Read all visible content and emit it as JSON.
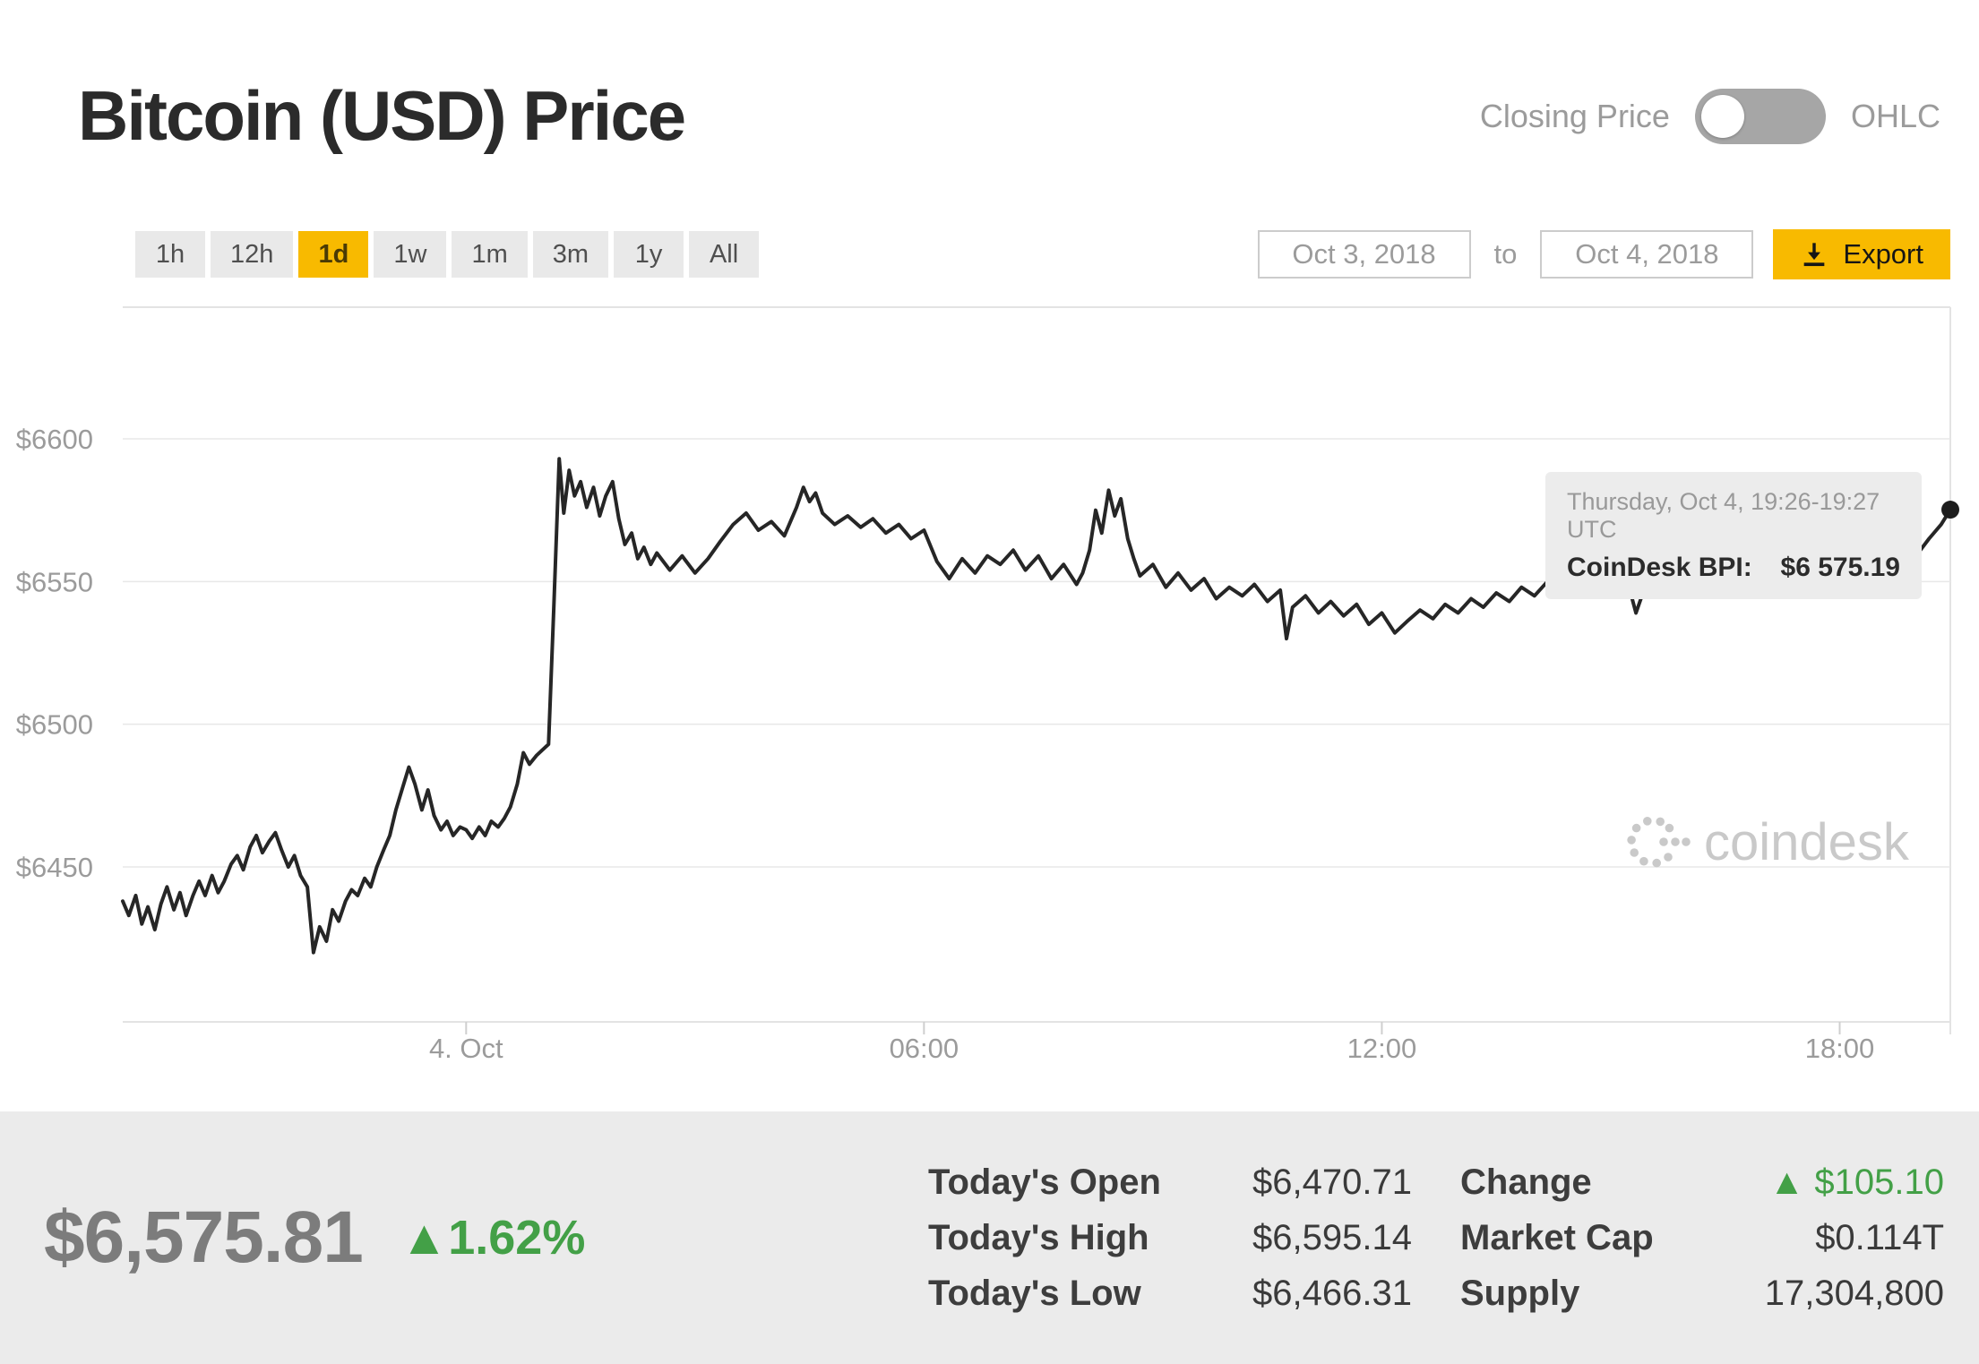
{
  "header": {
    "title": "Bitcoin (USD) Price",
    "toggle": {
      "left_label": "Closing Price",
      "right_label": "OHLC",
      "state": "closing_price"
    }
  },
  "controls": {
    "ranges": [
      {
        "label": "1h"
      },
      {
        "label": "12h"
      },
      {
        "label": "1d"
      },
      {
        "label": "1w"
      },
      {
        "label": "1m"
      },
      {
        "label": "3m"
      },
      {
        "label": "1y"
      },
      {
        "label": "All"
      }
    ],
    "active_range": "1d",
    "date_from": "Oct 3, 2018",
    "to_label": "to",
    "date_to": "Oct 4, 2018",
    "export_label": "Export"
  },
  "tooltip": {
    "time": "Thursday, Oct 4, 19:26-19:27 UTC",
    "source_label": "CoinDesk BPI:",
    "value": "$6 575.19"
  },
  "watermark": {
    "text": "coindesk"
  },
  "footer": {
    "price": "$6,575.81",
    "change_percent": "▲1.62%",
    "stats": [
      {
        "label": "Today's Open",
        "value": "$6,470.71"
      },
      {
        "label": "Today's High",
        "value": "$6,595.14"
      },
      {
        "label": "Today's Low",
        "value": "$6,466.31"
      },
      {
        "label": "Change",
        "value": "▲ $105.10"
      },
      {
        "label": "Market Cap",
        "value": "$0.114T"
      },
      {
        "label": "Supply",
        "value": "17,304,800"
      }
    ]
  },
  "colors": {
    "accent_yellow": "#f8ba00",
    "positive_green": "#43a047",
    "line": "#262626",
    "grid": "#e8e8e8",
    "axis_text": "#9b9b9b"
  },
  "chart_data": {
    "type": "line",
    "title": "Bitcoin (USD) Price",
    "series_name": "CoinDesk BPI closing price (USD)",
    "legend": "none",
    "grid": true,
    "x_axis": {
      "unit": "hours since 2018-10-03 19:30 UTC",
      "range": [
        0,
        23.95
      ],
      "ticks": [
        {
          "t": 4.5,
          "label": "4. Oct"
        },
        {
          "t": 10.5,
          "label": "06:00"
        },
        {
          "t": 16.5,
          "label": "12:00"
        },
        {
          "t": 22.5,
          "label": "18:00"
        }
      ]
    },
    "y_axis": {
      "ticks": [
        6450,
        6500,
        6550,
        6600
      ],
      "tick_labels": [
        "$6450",
        "$6500",
        "$6550",
        "$6600"
      ],
      "ylim": [
        6410,
        6625
      ]
    },
    "end_point": {
      "t": 23.95,
      "price": 6575.19,
      "label": "$6 575.19"
    },
    "points": [
      [
        0,
        6438
      ],
      [
        0.08,
        6433
      ],
      [
        0.17,
        6440
      ],
      [
        0.25,
        6430
      ],
      [
        0.33,
        6436
      ],
      [
        0.42,
        6428
      ],
      [
        0.5,
        6437
      ],
      [
        0.58,
        6443
      ],
      [
        0.67,
        6435
      ],
      [
        0.75,
        6441
      ],
      [
        0.83,
        6433
      ],
      [
        0.92,
        6440
      ],
      [
        1,
        6445
      ],
      [
        1.08,
        6440
      ],
      [
        1.17,
        6447
      ],
      [
        1.25,
        6441
      ],
      [
        1.33,
        6445
      ],
      [
        1.42,
        6451
      ],
      [
        1.5,
        6454
      ],
      [
        1.58,
        6449
      ],
      [
        1.67,
        6457
      ],
      [
        1.75,
        6461
      ],
      [
        1.83,
        6455
      ],
      [
        1.92,
        6459
      ],
      [
        2,
        6462
      ],
      [
        2.08,
        6456
      ],
      [
        2.17,
        6450
      ],
      [
        2.25,
        6454
      ],
      [
        2.33,
        6447
      ],
      [
        2.42,
        6443
      ],
      [
        2.5,
        6420
      ],
      [
        2.58,
        6429
      ],
      [
        2.67,
        6424
      ],
      [
        2.75,
        6435
      ],
      [
        2.83,
        6431
      ],
      [
        2.92,
        6438
      ],
      [
        3,
        6442
      ],
      [
        3.08,
        6440
      ],
      [
        3.17,
        6446
      ],
      [
        3.25,
        6443
      ],
      [
        3.33,
        6450
      ],
      [
        3.42,
        6456
      ],
      [
        3.5,
        6461
      ],
      [
        3.58,
        6470
      ],
      [
        3.67,
        6478
      ],
      [
        3.75,
        6485
      ],
      [
        3.83,
        6479
      ],
      [
        3.92,
        6470
      ],
      [
        4,
        6477
      ],
      [
        4.08,
        6468
      ],
      [
        4.17,
        6463
      ],
      [
        4.25,
        6466
      ],
      [
        4.33,
        6461
      ],
      [
        4.42,
        6464
      ],
      [
        4.5,
        6463
      ],
      [
        4.58,
        6460
      ],
      [
        4.67,
        6464
      ],
      [
        4.75,
        6461
      ],
      [
        4.83,
        6466
      ],
      [
        4.92,
        6464
      ],
      [
        5,
        6467
      ],
      [
        5.08,
        6471
      ],
      [
        5.17,
        6479
      ],
      [
        5.25,
        6490
      ],
      [
        5.33,
        6486
      ],
      [
        5.42,
        6489
      ],
      [
        5.5,
        6491
      ],
      [
        5.58,
        6493
      ],
      [
        5.65,
        6542
      ],
      [
        5.72,
        6593
      ],
      [
        5.78,
        6574
      ],
      [
        5.85,
        6589
      ],
      [
        5.92,
        6580
      ],
      [
        6,
        6585
      ],
      [
        6.08,
        6576
      ],
      [
        6.17,
        6583
      ],
      [
        6.25,
        6573
      ],
      [
        6.33,
        6580
      ],
      [
        6.42,
        6585
      ],
      [
        6.5,
        6572
      ],
      [
        6.58,
        6563
      ],
      [
        6.67,
        6567
      ],
      [
        6.75,
        6558
      ],
      [
        6.83,
        6562
      ],
      [
        6.92,
        6556
      ],
      [
        7,
        6560
      ],
      [
        7.17,
        6554
      ],
      [
        7.33,
        6559
      ],
      [
        7.5,
        6553
      ],
      [
        7.67,
        6558
      ],
      [
        7.83,
        6564
      ],
      [
        8,
        6570
      ],
      [
        8.17,
        6574
      ],
      [
        8.33,
        6568
      ],
      [
        8.5,
        6571
      ],
      [
        8.67,
        6566
      ],
      [
        8.83,
        6576
      ],
      [
        8.92,
        6583
      ],
      [
        9,
        6578
      ],
      [
        9.08,
        6581
      ],
      [
        9.17,
        6574
      ],
      [
        9.33,
        6570
      ],
      [
        9.5,
        6573
      ],
      [
        9.67,
        6569
      ],
      [
        9.83,
        6572
      ],
      [
        10,
        6567
      ],
      [
        10.17,
        6570
      ],
      [
        10.33,
        6565
      ],
      [
        10.5,
        6568
      ],
      [
        10.67,
        6557
      ],
      [
        10.83,
        6551
      ],
      [
        11,
        6558
      ],
      [
        11.17,
        6553
      ],
      [
        11.33,
        6559
      ],
      [
        11.5,
        6556
      ],
      [
        11.67,
        6561
      ],
      [
        11.83,
        6554
      ],
      [
        12,
        6559
      ],
      [
        12.17,
        6551
      ],
      [
        12.33,
        6556
      ],
      [
        12.5,
        6549
      ],
      [
        12.58,
        6553
      ],
      [
        12.67,
        6561
      ],
      [
        12.75,
        6575
      ],
      [
        12.83,
        6567
      ],
      [
        12.92,
        6582
      ],
      [
        13,
        6573
      ],
      [
        13.08,
        6579
      ],
      [
        13.17,
        6565
      ],
      [
        13.25,
        6558
      ],
      [
        13.33,
        6552
      ],
      [
        13.5,
        6556
      ],
      [
        13.67,
        6548
      ],
      [
        13.83,
        6553
      ],
      [
        14,
        6547
      ],
      [
        14.17,
        6551
      ],
      [
        14.33,
        6544
      ],
      [
        14.5,
        6548
      ],
      [
        14.67,
        6545
      ],
      [
        14.83,
        6549
      ],
      [
        15,
        6543
      ],
      [
        15.17,
        6547
      ],
      [
        15.25,
        6530
      ],
      [
        15.33,
        6541
      ],
      [
        15.5,
        6545
      ],
      [
        15.67,
        6539
      ],
      [
        15.83,
        6543
      ],
      [
        16,
        6538
      ],
      [
        16.17,
        6542
      ],
      [
        16.33,
        6535
      ],
      [
        16.5,
        6539
      ],
      [
        16.67,
        6532
      ],
      [
        16.83,
        6536
      ],
      [
        17,
        6540
      ],
      [
        17.17,
        6537
      ],
      [
        17.33,
        6542
      ],
      [
        17.5,
        6539
      ],
      [
        17.67,
        6544
      ],
      [
        17.83,
        6541
      ],
      [
        18,
        6546
      ],
      [
        18.17,
        6543
      ],
      [
        18.33,
        6548
      ],
      [
        18.5,
        6545
      ],
      [
        18.67,
        6550
      ],
      [
        18.83,
        6547
      ],
      [
        19,
        6551
      ],
      [
        19.17,
        6548
      ],
      [
        19.33,
        6553
      ],
      [
        19.5,
        6550
      ],
      [
        19.67,
        6555
      ],
      [
        19.83,
        6539
      ],
      [
        20,
        6552
      ],
      [
        20.08,
        6568
      ],
      [
        20.17,
        6560
      ],
      [
        20.33,
        6556
      ],
      [
        20.5,
        6563
      ],
      [
        20.67,
        6558
      ],
      [
        20.83,
        6562
      ],
      [
        21,
        6557
      ],
      [
        21.17,
        6561
      ],
      [
        21.33,
        6556
      ],
      [
        21.5,
        6560
      ],
      [
        21.67,
        6555
      ],
      [
        21.83,
        6559
      ],
      [
        22,
        6554
      ],
      [
        22.17,
        6558
      ],
      [
        22.33,
        6552
      ],
      [
        22.5,
        6557
      ],
      [
        22.67,
        6551
      ],
      [
        22.83,
        6555
      ],
      [
        23,
        6560
      ],
      [
        23.17,
        6556
      ],
      [
        23.33,
        6562
      ],
      [
        23.5,
        6559
      ],
      [
        23.67,
        6565
      ],
      [
        23.83,
        6570
      ],
      [
        23.95,
        6575.19
      ]
    ]
  }
}
